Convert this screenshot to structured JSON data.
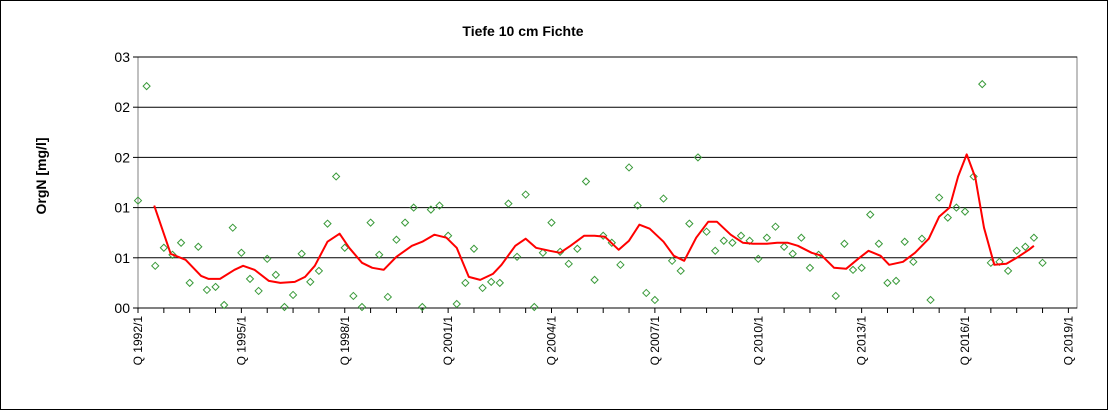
{
  "chart_data": {
    "type": "scatter",
    "title": "Tiefe  10 cm     Fichte",
    "ylabel": "OrgN [mg/l]",
    "xlabel": "",
    "y_tick_labels": [
      "00",
      "01",
      "01",
      "02",
      "02",
      "03"
    ],
    "ylim": [
      0,
      2.5
    ],
    "grid": true,
    "x_tick_labels": [
      "Q 1992/1",
      "Q 1995/1",
      "Q 1998/1",
      "Q 2001/1",
      "Q 2004/1",
      "Q 2007/1",
      "Q 2010/1",
      "Q 2013/1",
      "Q 2016/1",
      "Q 2019/1"
    ],
    "colors": {
      "points": "#3a9a3a",
      "trend": "#ff0000",
      "grid": "#000000",
      "plot_border": "#808080"
    },
    "series": [
      {
        "style": "markers-diamond",
        "points": [
          [
            1992.0,
            1.07
          ],
          [
            1992.25,
            2.21
          ],
          [
            1992.5,
            0.42
          ],
          [
            1992.75,
            0.6
          ],
          [
            1993.0,
            0.53
          ],
          [
            1993.25,
            0.65
          ],
          [
            1993.5,
            0.25
          ],
          [
            1993.75,
            0.61
          ],
          [
            1994.0,
            0.18
          ],
          [
            1994.25,
            0.21
          ],
          [
            1994.5,
            0.03
          ],
          [
            1994.75,
            0.8
          ],
          [
            1995.0,
            0.55
          ],
          [
            1995.25,
            0.29
          ],
          [
            1995.5,
            0.17
          ],
          [
            1995.75,
            0.49
          ],
          [
            1996.0,
            0.33
          ],
          [
            1996.25,
            0.01
          ],
          [
            1996.5,
            0.13
          ],
          [
            1996.75,
            0.54
          ],
          [
            1997.0,
            0.26
          ],
          [
            1997.25,
            0.37
          ],
          [
            1997.5,
            0.84
          ],
          [
            1997.75,
            1.31
          ],
          [
            1998.0,
            0.6
          ],
          [
            1998.25,
            0.12
          ],
          [
            1998.5,
            0.01
          ],
          [
            1998.75,
            0.85
          ],
          [
            1999.0,
            0.53
          ],
          [
            1999.25,
            0.11
          ],
          [
            1999.5,
            0.68
          ],
          [
            1999.75,
            0.85
          ],
          [
            2000.0,
            1.0
          ],
          [
            2000.25,
            0.01
          ],
          [
            2000.5,
            0.98
          ],
          [
            2000.75,
            1.02
          ],
          [
            2001.0,
            0.72
          ],
          [
            2001.25,
            0.04
          ],
          [
            2001.5,
            0.25
          ],
          [
            2001.75,
            0.59
          ],
          [
            2002.0,
            0.2
          ],
          [
            2002.25,
            0.26
          ],
          [
            2002.5,
            0.25
          ],
          [
            2002.75,
            1.04
          ],
          [
            2003.0,
            0.51
          ],
          [
            2003.25,
            1.13
          ],
          [
            2003.5,
            0.01
          ],
          [
            2003.75,
            0.55
          ],
          [
            2004.0,
            0.85
          ],
          [
            2004.25,
            0.56
          ],
          [
            2004.5,
            0.44
          ],
          [
            2004.75,
            0.59
          ],
          [
            2005.0,
            1.26
          ],
          [
            2005.25,
            0.28
          ],
          [
            2005.5,
            0.72
          ],
          [
            2005.75,
            0.65
          ],
          [
            2006.0,
            0.43
          ],
          [
            2006.25,
            1.4
          ],
          [
            2006.5,
            1.02
          ],
          [
            2006.75,
            0.15
          ],
          [
            2007.0,
            0.08
          ],
          [
            2007.25,
            1.09
          ],
          [
            2007.5,
            0.47
          ],
          [
            2007.75,
            0.37
          ],
          [
            2008.0,
            0.84
          ],
          [
            2008.25,
            1.5
          ],
          [
            2008.5,
            0.76
          ],
          [
            2008.75,
            0.57
          ],
          [
            2009.0,
            0.67
          ],
          [
            2009.25,
            0.65
          ],
          [
            2009.5,
            0.72
          ],
          [
            2009.75,
            0.67
          ],
          [
            2010.0,
            0.49
          ],
          [
            2010.25,
            0.7
          ],
          [
            2010.5,
            0.81
          ],
          [
            2010.75,
            0.61
          ],
          [
            2011.0,
            0.54
          ],
          [
            2011.25,
            0.7
          ],
          [
            2011.5,
            0.4
          ],
          [
            2011.75,
            0.53
          ],
          [
            2012.25,
            0.12
          ],
          [
            2012.5,
            0.64
          ],
          [
            2012.75,
            0.38
          ],
          [
            2013.0,
            0.4
          ],
          [
            2013.25,
            0.93
          ],
          [
            2013.5,
            0.64
          ],
          [
            2013.75,
            0.25
          ],
          [
            2014.0,
            0.27
          ],
          [
            2014.25,
            0.66
          ],
          [
            2014.5,
            0.46
          ],
          [
            2014.75,
            0.69
          ],
          [
            2015.0,
            0.08
          ],
          [
            2015.25,
            1.1
          ],
          [
            2015.5,
            0.9
          ],
          [
            2015.75,
            1.0
          ],
          [
            2016.0,
            0.96
          ],
          [
            2016.25,
            1.31
          ],
          [
            2016.5,
            2.23
          ],
          [
            2016.75,
            0.45
          ],
          [
            2017.0,
            0.46
          ],
          [
            2017.25,
            0.37
          ],
          [
            2017.5,
            0.57
          ],
          [
            2017.75,
            0.61
          ],
          [
            2018.0,
            0.7
          ],
          [
            2018.25,
            0.45
          ]
        ]
      },
      {
        "style": "line",
        "points": [
          [
            1992.47,
            1.02
          ],
          [
            1992.95,
            0.54
          ],
          [
            1993.38,
            0.48
          ],
          [
            1993.83,
            0.32
          ],
          [
            1994.05,
            0.29
          ],
          [
            1994.38,
            0.29
          ],
          [
            1994.8,
            0.38
          ],
          [
            1995.05,
            0.42
          ],
          [
            1995.38,
            0.38
          ],
          [
            1995.8,
            0.27
          ],
          [
            1996.13,
            0.25
          ],
          [
            1996.55,
            0.26
          ],
          [
            1996.85,
            0.31
          ],
          [
            1997.13,
            0.42
          ],
          [
            1997.5,
            0.66
          ],
          [
            1997.85,
            0.74
          ],
          [
            1998.13,
            0.6
          ],
          [
            1998.5,
            0.45
          ],
          [
            1998.8,
            0.4
          ],
          [
            1999.13,
            0.38
          ],
          [
            1999.5,
            0.51
          ],
          [
            1999.95,
            0.62
          ],
          [
            2000.25,
            0.66
          ],
          [
            2000.6,
            0.73
          ],
          [
            2000.95,
            0.7
          ],
          [
            2001.25,
            0.6
          ],
          [
            2001.6,
            0.31
          ],
          [
            2001.93,
            0.28
          ],
          [
            2002.3,
            0.34
          ],
          [
            2002.55,
            0.43
          ],
          [
            2002.95,
            0.62
          ],
          [
            2003.25,
            0.69
          ],
          [
            2003.55,
            0.6
          ],
          [
            2003.95,
            0.57
          ],
          [
            2004.25,
            0.55
          ],
          [
            2004.55,
            0.62
          ],
          [
            2004.95,
            0.72
          ],
          [
            2005.25,
            0.72
          ],
          [
            2005.55,
            0.71
          ],
          [
            2005.95,
            0.58
          ],
          [
            2006.25,
            0.67
          ],
          [
            2006.55,
            0.83
          ],
          [
            2006.85,
            0.79
          ],
          [
            2007.25,
            0.66
          ],
          [
            2007.55,
            0.52
          ],
          [
            2007.85,
            0.47
          ],
          [
            2008.2,
            0.7
          ],
          [
            2008.55,
            0.86
          ],
          [
            2008.8,
            0.86
          ],
          [
            2009.2,
            0.73
          ],
          [
            2009.55,
            0.65
          ],
          [
            2009.85,
            0.64
          ],
          [
            2010.25,
            0.64
          ],
          [
            2010.55,
            0.65
          ],
          [
            2010.85,
            0.65
          ],
          [
            2011.15,
            0.62
          ],
          [
            2011.55,
            0.55
          ],
          [
            2011.85,
            0.52
          ],
          [
            2012.2,
            0.4
          ],
          [
            2012.55,
            0.39
          ],
          [
            2012.9,
            0.49
          ],
          [
            2013.2,
            0.57
          ],
          [
            2013.55,
            0.52
          ],
          [
            2013.8,
            0.43
          ],
          [
            2014.2,
            0.46
          ],
          [
            2014.55,
            0.55
          ],
          [
            2014.95,
            0.69
          ],
          [
            2015.25,
            0.91
          ],
          [
            2015.55,
            1.0
          ],
          [
            2015.8,
            1.31
          ],
          [
            2016.05,
            1.53
          ],
          [
            2016.3,
            1.3
          ],
          [
            2016.55,
            0.8
          ],
          [
            2016.85,
            0.43
          ],
          [
            2017.2,
            0.44
          ],
          [
            2017.5,
            0.5
          ],
          [
            2017.85,
            0.58
          ],
          [
            2018.0,
            0.62
          ]
        ]
      }
    ]
  }
}
